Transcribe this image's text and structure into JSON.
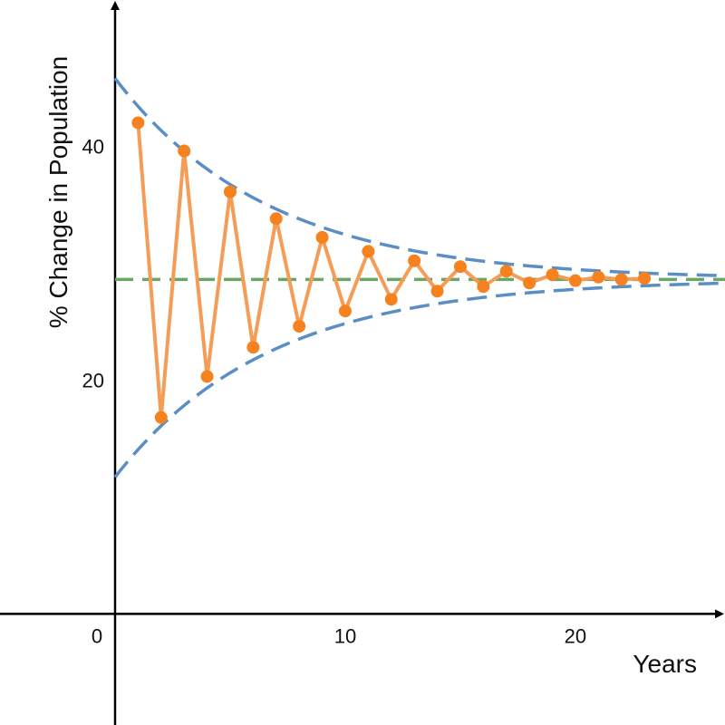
{
  "chart_data": {
    "type": "line",
    "xlabel": "Years",
    "ylabel": "% Change in Population",
    "xlim": [
      -5,
      26.5
    ],
    "ylim": [
      -9.5,
      52.5
    ],
    "x_ticks": [
      {
        "value": 0,
        "label": "0"
      },
      {
        "value": 10,
        "label": "10"
      },
      {
        "value": 20,
        "label": "20"
      }
    ],
    "y_ticks": [
      {
        "value": 20,
        "label": "20"
      },
      {
        "value": 40,
        "label": "40"
      }
    ],
    "grid": false,
    "series": [
      {
        "style": "solid line with markers",
        "color": "#f59d56",
        "marker_color": "#f5821f",
        "x": [
          1,
          2,
          3,
          4,
          5,
          6,
          7,
          8,
          9,
          10,
          11,
          12,
          13,
          14,
          15,
          16,
          17,
          18,
          19,
          20,
          21,
          22,
          23
        ],
        "y": [
          42.0,
          16.8,
          39.6,
          20.3,
          36.1,
          22.8,
          33.8,
          24.6,
          32.2,
          25.9,
          31.0,
          26.9,
          30.2,
          27.6,
          29.7,
          28.0,
          29.3,
          28.3,
          29.0,
          28.5,
          28.8,
          28.6,
          28.7
        ]
      }
    ],
    "envelope": {
      "style": "dashed curves",
      "color": "#5b8ec4",
      "equilibrium": 28.6,
      "upper_start": 45.8,
      "lower_start": 11.7,
      "decay_rate": 0.15
    },
    "equilibrium_line": {
      "style": "dashed horizontal line",
      "color": "#6aa765",
      "y": 28.6
    }
  }
}
